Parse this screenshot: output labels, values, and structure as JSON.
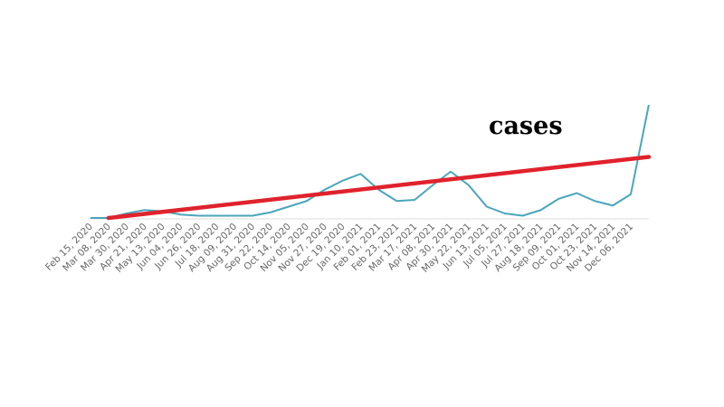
{
  "chart_data": {
    "type": "line",
    "annotation": "cases",
    "categories": [
      "Feb 15, 2020",
      "Mar 08, 2020",
      "Mar 30, 2020",
      "Apr 21, 2020",
      "May 13, 2020",
      "Jun 04, 2020",
      "Jun 26, 2020",
      "Jul 18, 2020",
      "Aug 09, 2020",
      "Aug 31, 2020",
      "Sep 22, 2020",
      "Oct 14, 2020",
      "Nov 05, 2020",
      "Nov 27, 2020",
      "Dec 19, 2020",
      "Jan 10, 2021",
      "Feb 01, 2021",
      "Feb 23, 2021",
      "Mar 17, 2021",
      "Apr 08, 2021",
      "Apr 30, 2021",
      "May 22, 2021",
      "Jun 13, 2021",
      "Jul 05, 2021",
      "Jul 27, 2021",
      "Aug 18, 2021",
      "Sep 09, 2021",
      "Oct 01, 2021",
      "Oct 23, 2021",
      "Nov 14, 2021",
      "Dec 06, 2021",
      null
    ],
    "series": [
      {
        "color": "#4aa6bb",
        "values": [
          0,
          0,
          4,
          7,
          6,
          3,
          2,
          2,
          2,
          2,
          5,
          10,
          15,
          25,
          33,
          39,
          25,
          15,
          16,
          29,
          41,
          29,
          10,
          4,
          2,
          7,
          17,
          22,
          15,
          11,
          21,
          100
        ]
      }
    ],
    "trend": {
      "color": "#e0222c",
      "points": [
        [
          1,
          0
        ],
        [
          31,
          54
        ]
      ]
    },
    "ylim": [
      0,
      100
    ]
  }
}
